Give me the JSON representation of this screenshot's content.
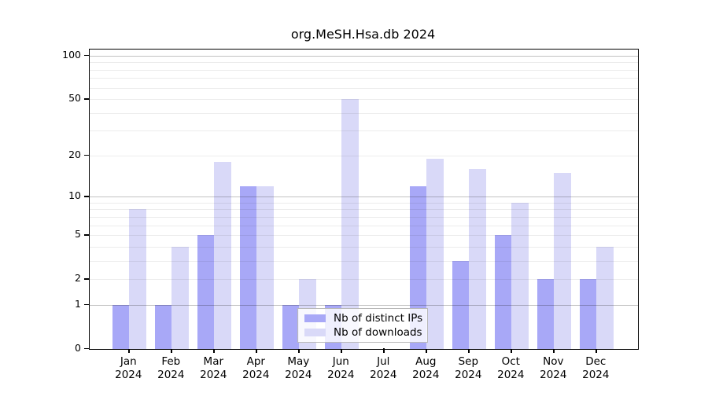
{
  "chart_data": {
    "type": "bar",
    "title": "org.MeSH.Hsa.db 2024",
    "year_label": "2024",
    "categories": [
      "Jan",
      "Feb",
      "Mar",
      "Apr",
      "May",
      "Jun",
      "Jul",
      "Aug",
      "Sep",
      "Oct",
      "Nov",
      "Dec"
    ],
    "series": [
      {
        "name": "Nb of distinct IPs",
        "color": "#a8a8f7",
        "values": [
          1,
          1,
          5,
          12,
          1,
          1,
          0,
          12,
          3,
          5,
          2,
          2
        ]
      },
      {
        "name": "Nb of downloads",
        "color": "#d9d9f8",
        "values": [
          8,
          4,
          18,
          12,
          2,
          50,
          0,
          19,
          16,
          9,
          15,
          4
        ]
      }
    ],
    "y_axis": {
      "scale": "log10(1+x)",
      "ticks": [
        0,
        1,
        2,
        5,
        10,
        20,
        50,
        100
      ],
      "major_gridlines": [
        1,
        10,
        100
      ],
      "minor_gridlines": [
        2,
        3,
        4,
        5,
        6,
        7,
        8,
        9,
        20,
        30,
        40,
        50,
        60,
        70,
        80,
        90
      ],
      "ylim": [
        0,
        100
      ]
    },
    "x_axis": {
      "tick_label_format": "month + year, two lines"
    },
    "legend": {
      "position": "inside-bottom-center",
      "entries": [
        "Nb of distinct IPs",
        "Nb of downloads"
      ]
    },
    "colors": {
      "bar_distinct_ips": "#a8a8f7",
      "bar_downloads": "#d9d9f8",
      "grid_major": "#c2c2c2",
      "grid_minor": "#ebebeb",
      "frame": "#000000",
      "background": "#ffffff"
    }
  }
}
